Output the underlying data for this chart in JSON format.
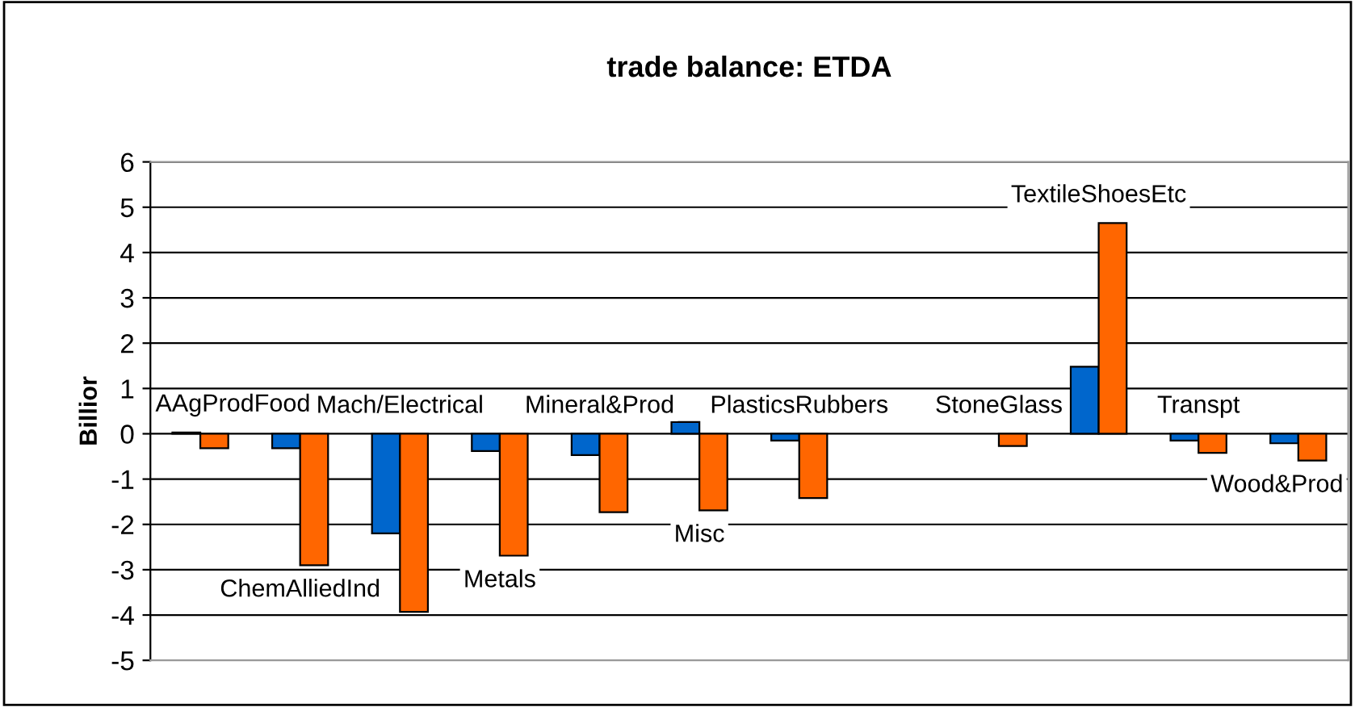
{
  "chart_data": {
    "type": "bar",
    "title": "trade balance: ETDA",
    "ylabel": "Billior",
    "categories": [
      "AAgProdFood",
      "ChemAlliedInd",
      "Mach/Electrical",
      "Metals",
      "Mineral&Prod",
      "Misc",
      "PlasticsRubbers",
      null,
      "StoneGlass",
      "TextileShoesEtc",
      "Transpt",
      "Wood&Prod"
    ],
    "series": [
      {
        "color": "#0066cc",
        "values": [
          0.03,
          -0.32,
          -2.2,
          -0.38,
          -0.47,
          0.26,
          -0.15,
          null,
          null,
          1.48,
          -0.15,
          -0.21
        ]
      },
      {
        "color": "#ff6600",
        "values": [
          -0.32,
          -2.9,
          -3.93,
          -2.69,
          -1.73,
          -1.69,
          -1.42,
          null,
          -0.27,
          4.65,
          -0.42,
          -0.59
        ]
      }
    ],
    "ylim": [
      -5,
      6
    ],
    "yticks": [
      -5,
      -4,
      -3,
      -2,
      -1,
      0,
      1,
      2,
      3,
      4,
      5,
      6
    ],
    "grid": "y",
    "tick_labels": "y"
  }
}
